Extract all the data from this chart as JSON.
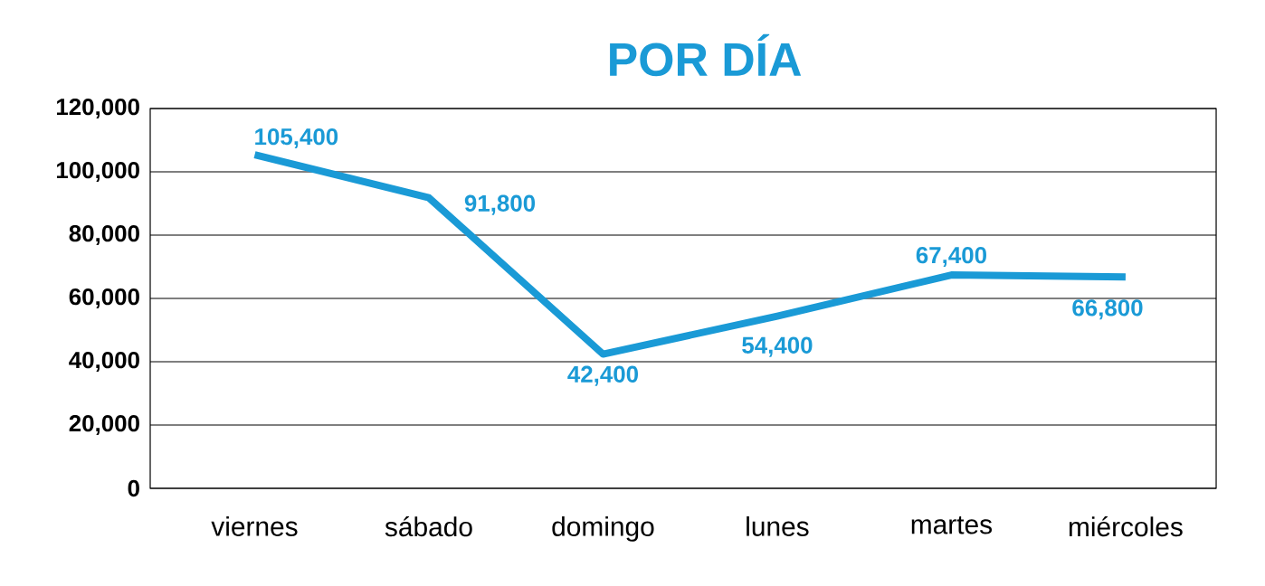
{
  "chart_data": {
    "type": "line",
    "title": "POR DÍA",
    "categories": [
      "viernes",
      "sábado",
      "domingo",
      "lunes",
      "martes",
      "miércoles"
    ],
    "values": [
      105400,
      91800,
      42400,
      54400,
      67400,
      66800
    ],
    "value_labels": [
      "105,400",
      "91,800",
      "42,400",
      "54,400",
      "67,400",
      "66,800"
    ],
    "color": "#1a9ad6",
    "ylim": [
      0,
      120000
    ],
    "yticks": [
      0,
      {
        "value": 20000,
        "label": "20,000"
      },
      {
        "value": 40000,
        "label": "40,000"
      },
      {
        "value": 60000,
        "label": "60,000"
      },
      {
        "value": 80000,
        "label": "80,000"
      },
      {
        "value": 100000,
        "label": "100,000"
      },
      {
        "value": 120000,
        "label": "120,000"
      }
    ],
    "grid": "y",
    "marker": "none",
    "line_style": "solid"
  }
}
